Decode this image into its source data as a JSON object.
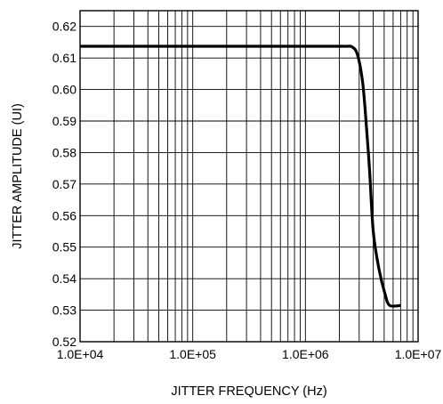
{
  "chart_data": {
    "type": "line",
    "title": "",
    "xlabel": "JITTER FREQUENCY (Hz)",
    "ylabel": "JITTER AMPLITUDE (UI)",
    "x_scale": "log",
    "xlim": [
      10000,
      10000000
    ],
    "ylim": [
      0.52,
      0.625
    ],
    "x_ticks": [
      10000,
      100000,
      1000000,
      10000000
    ],
    "x_tick_labels": [
      "1.0E+04",
      "1.0E+05",
      "1.0E+06",
      "1.0E+07"
    ],
    "y_ticks": [
      0.52,
      0.53,
      0.54,
      0.55,
      0.56,
      0.57,
      0.58,
      0.59,
      0.6,
      0.61,
      0.62
    ],
    "y_tick_labels": [
      "0.52",
      "0.53",
      "0.54",
      "0.55",
      "0.56",
      "0.57",
      "0.58",
      "0.59",
      "0.60",
      "0.61",
      "0.62"
    ],
    "grid": true,
    "legend": "none",
    "line_color": "#000000",
    "series": [
      {
        "x": [
          10000,
          100000,
          1000000,
          2200000,
          2600000,
          2900000,
          3200000,
          3400000,
          3700000,
          4000000,
          4500000,
          5100000,
          5600000,
          7000000
        ],
        "y": [
          0.6137,
          0.6137,
          0.6137,
          0.6137,
          0.6135,
          0.611,
          0.603,
          0.593,
          0.575,
          0.555,
          0.543,
          0.535,
          0.5315,
          0.5315
        ]
      }
    ]
  }
}
